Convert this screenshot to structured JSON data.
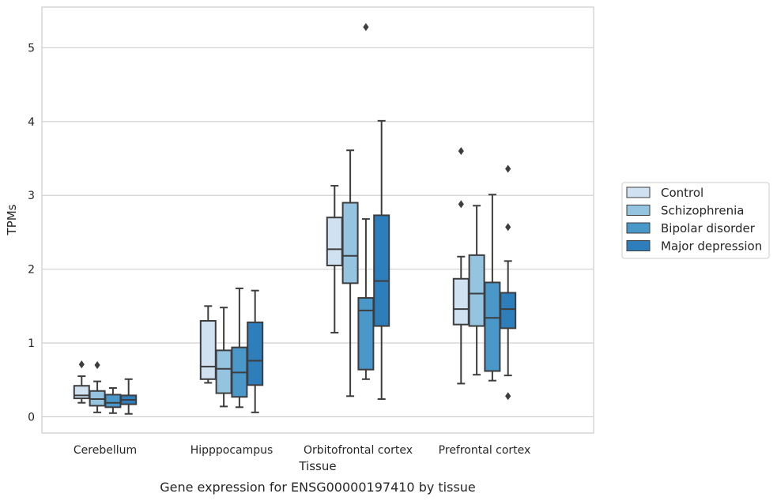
{
  "caption": "Gene expression for ENSG00000197410 by tissue",
  "chart_data": {
    "type": "boxplot",
    "xlabel": "Tissue",
    "ylabel": "TPMs",
    "ylim": [
      -0.22,
      5.55
    ],
    "yticks": [
      0,
      1,
      2,
      3,
      4,
      5
    ],
    "categories": [
      "Cerebellum",
      "Hipppocampus",
      "Orbitofrontal cortex",
      "Prefrontal cortex"
    ],
    "grid": "horizontal",
    "legend_position": "right",
    "series": [
      {
        "name": "Control",
        "color": "#d0e1f2",
        "boxes": [
          {
            "whislo": 0.19,
            "q1": 0.25,
            "med": 0.29,
            "q3": 0.42,
            "whishi": 0.55,
            "fliers": [
              0.71
            ]
          },
          {
            "whislo": 0.46,
            "q1": 0.51,
            "med": 0.68,
            "q3": 1.3,
            "whishi": 1.5,
            "fliers": []
          },
          {
            "whislo": 1.14,
            "q1": 2.05,
            "med": 2.27,
            "q3": 2.7,
            "whishi": 3.13,
            "fliers": []
          },
          {
            "whislo": 0.45,
            "q1": 1.25,
            "med": 1.46,
            "q3": 1.87,
            "whishi": 2.17,
            "fliers": [
              2.88,
              3.6
            ]
          }
        ]
      },
      {
        "name": "Schizophrenia",
        "color": "#94c4df",
        "boxes": [
          {
            "whislo": 0.06,
            "q1": 0.15,
            "med": 0.24,
            "q3": 0.35,
            "whishi": 0.48,
            "fliers": [
              0.7
            ]
          },
          {
            "whislo": 0.14,
            "q1": 0.32,
            "med": 0.65,
            "q3": 0.9,
            "whishi": 1.48,
            "fliers": []
          },
          {
            "whislo": 0.28,
            "q1": 1.81,
            "med": 2.18,
            "q3": 2.9,
            "whishi": 3.61,
            "fliers": []
          },
          {
            "whislo": 0.57,
            "q1": 1.23,
            "med": 1.67,
            "q3": 2.19,
            "whishi": 2.86,
            "fliers": []
          }
        ]
      },
      {
        "name": "Bipolar disorder",
        "color": "#4a98c9",
        "boxes": [
          {
            "whislo": 0.05,
            "q1": 0.13,
            "med": 0.19,
            "q3": 0.3,
            "whishi": 0.39,
            "fliers": []
          },
          {
            "whislo": 0.13,
            "q1": 0.27,
            "med": 0.6,
            "q3": 0.94,
            "whishi": 1.74,
            "fliers": []
          },
          {
            "whislo": 0.51,
            "q1": 0.64,
            "med": 1.44,
            "q3": 1.61,
            "whishi": 2.68,
            "fliers": [
              5.28
            ]
          },
          {
            "whislo": 0.49,
            "q1": 0.62,
            "med": 1.34,
            "q3": 1.82,
            "whishi": 3.01,
            "fliers": []
          }
        ]
      },
      {
        "name": "Major depression",
        "color": "#2e7ebc",
        "boxes": [
          {
            "whislo": 0.04,
            "q1": 0.17,
            "med": 0.23,
            "q3": 0.29,
            "whishi": 0.51,
            "fliers": []
          },
          {
            "whislo": 0.06,
            "q1": 0.43,
            "med": 0.76,
            "q3": 1.28,
            "whishi": 1.71,
            "fliers": []
          },
          {
            "whislo": 0.24,
            "q1": 1.23,
            "med": 1.84,
            "q3": 2.73,
            "whishi": 4.01,
            "fliers": []
          },
          {
            "whislo": 0.56,
            "q1": 1.2,
            "med": 1.46,
            "q3": 1.68,
            "whishi": 2.11,
            "fliers": [
              0.28,
              2.57,
              3.36
            ]
          }
        ]
      }
    ]
  }
}
